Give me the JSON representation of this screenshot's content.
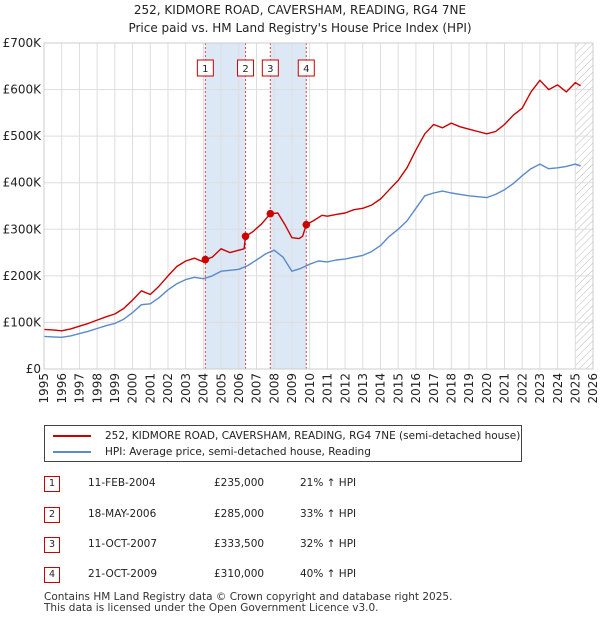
{
  "header": {
    "title": "252, KIDMORE ROAD, CAVERSHAM, READING, RG4 7NE",
    "subtitle": "Price paid vs. HM Land Registry's House Price Index (HPI)"
  },
  "legend": {
    "property_label": "252, KIDMORE ROAD, CAVERSHAM, READING, RG4 7NE (semi-detached house)",
    "hpi_label": "HPI: Average price, semi-detached house, Reading"
  },
  "sales": [
    {
      "num": "1",
      "date": "11-FEB-2004",
      "price": "£235,000",
      "hpi": "21% ↑ HPI"
    },
    {
      "num": "2",
      "date": "18-MAY-2006",
      "price": "£285,000",
      "hpi": "33% ↑ HPI"
    },
    {
      "num": "3",
      "date": "11-OCT-2007",
      "price": "£333,500",
      "hpi": "32% ↑ HPI"
    },
    {
      "num": "4",
      "date": "21-OCT-2009",
      "price": "£310,000",
      "hpi": "40% ↑ HPI"
    }
  ],
  "footer": {
    "line1": "Contains HM Land Registry data © Crown copyright and database right 2025.",
    "line2": "This data is licensed under the Open Government Licence v3.0."
  },
  "colors": {
    "property": "#cc0000",
    "hpi": "#5a8ac8",
    "shade": "#dce8f6",
    "grid": "#dddddd"
  },
  "chart_data": {
    "type": "line",
    "title": "252, KIDMORE ROAD, CAVERSHAM, READING, RG4 7NE",
    "subtitle": "Price paid vs. HM Land Registry's House Price Index (HPI)",
    "xlabel": "",
    "ylabel": "",
    "xlim": [
      1995,
      2026
    ],
    "ylim": [
      0,
      700000
    ],
    "x_ticks": [
      1995,
      1996,
      1997,
      1998,
      1999,
      2000,
      2001,
      2002,
      2003,
      2004,
      2005,
      2006,
      2007,
      2008,
      2009,
      2010,
      2011,
      2012,
      2013,
      2014,
      2015,
      2016,
      2017,
      2018,
      2019,
      2020,
      2021,
      2022,
      2023,
      2024,
      2025,
      2026
    ],
    "y_ticks": [
      0,
      100000,
      200000,
      300000,
      400000,
      500000,
      600000,
      700000
    ],
    "y_tick_labels": [
      "£0",
      "£100K",
      "£200K",
      "£300K",
      "£400K",
      "£500K",
      "£600K",
      "£700K"
    ],
    "grid": true,
    "legend_position": "below",
    "series": [
      {
        "name": "252, KIDMORE ROAD, CAVERSHAM, READING, RG4 7NE (semi-detached house)",
        "color": "#cc0000",
        "points": [
          [
            1995.0,
            85000
          ],
          [
            1995.5,
            84000
          ],
          [
            1996.0,
            82000
          ],
          [
            1996.5,
            86000
          ],
          [
            1997.0,
            92000
          ],
          [
            1997.5,
            98000
          ],
          [
            1998.0,
            105000
          ],
          [
            1998.5,
            112000
          ],
          [
            1999.0,
            118000
          ],
          [
            1999.5,
            130000
          ],
          [
            2000.0,
            148000
          ],
          [
            2000.5,
            168000
          ],
          [
            2001.0,
            160000
          ],
          [
            2001.5,
            178000
          ],
          [
            2002.0,
            200000
          ],
          [
            2002.5,
            220000
          ],
          [
            2003.0,
            232000
          ],
          [
            2003.5,
            238000
          ],
          [
            2004.0,
            230000
          ],
          [
            2004.11,
            235000
          ],
          [
            2004.5,
            240000
          ],
          [
            2005.0,
            258000
          ],
          [
            2005.5,
            250000
          ],
          [
            2006.0,
            255000
          ],
          [
            2006.3,
            258000
          ],
          [
            2006.38,
            285000
          ],
          [
            2006.8,
            295000
          ],
          [
            2007.3,
            312000
          ],
          [
            2007.78,
            333500
          ],
          [
            2008.2,
            335000
          ],
          [
            2008.6,
            310000
          ],
          [
            2009.0,
            282000
          ],
          [
            2009.4,
            280000
          ],
          [
            2009.6,
            285000
          ],
          [
            2009.81,
            310000
          ],
          [
            2010.2,
            318000
          ],
          [
            2010.7,
            330000
          ],
          [
            2011.0,
            328000
          ],
          [
            2011.5,
            332000
          ],
          [
            2012.0,
            335000
          ],
          [
            2012.5,
            342000
          ],
          [
            2013.0,
            345000
          ],
          [
            2013.5,
            352000
          ],
          [
            2014.0,
            365000
          ],
          [
            2014.5,
            385000
          ],
          [
            2015.0,
            405000
          ],
          [
            2015.5,
            432000
          ],
          [
            2016.0,
            470000
          ],
          [
            2016.5,
            505000
          ],
          [
            2017.0,
            525000
          ],
          [
            2017.5,
            518000
          ],
          [
            2018.0,
            528000
          ],
          [
            2018.5,
            520000
          ],
          [
            2019.0,
            515000
          ],
          [
            2019.5,
            510000
          ],
          [
            2020.0,
            505000
          ],
          [
            2020.5,
            510000
          ],
          [
            2021.0,
            525000
          ],
          [
            2021.5,
            545000
          ],
          [
            2022.0,
            560000
          ],
          [
            2022.5,
            595000
          ],
          [
            2023.0,
            620000
          ],
          [
            2023.5,
            600000
          ],
          [
            2024.0,
            610000
          ],
          [
            2024.5,
            595000
          ],
          [
            2025.0,
            615000
          ],
          [
            2025.3,
            608000
          ]
        ]
      },
      {
        "name": "HPI: Average price, semi-detached house, Reading",
        "color": "#5a8ac8",
        "points": [
          [
            1995.0,
            70000
          ],
          [
            1995.5,
            69000
          ],
          [
            1996.0,
            68000
          ],
          [
            1996.5,
            71000
          ],
          [
            1997.0,
            76000
          ],
          [
            1997.5,
            81000
          ],
          [
            1998.0,
            87000
          ],
          [
            1998.5,
            93000
          ],
          [
            1999.0,
            98000
          ],
          [
            1999.5,
            107000
          ],
          [
            2000.0,
            121000
          ],
          [
            2000.5,
            138000
          ],
          [
            2001.0,
            140000
          ],
          [
            2001.5,
            153000
          ],
          [
            2002.0,
            170000
          ],
          [
            2002.5,
            183000
          ],
          [
            2003.0,
            192000
          ],
          [
            2003.5,
            197000
          ],
          [
            2004.0,
            194000
          ],
          [
            2004.5,
            200000
          ],
          [
            2005.0,
            210000
          ],
          [
            2005.5,
            212000
          ],
          [
            2006.0,
            214000
          ],
          [
            2006.5,
            222000
          ],
          [
            2007.0,
            234000
          ],
          [
            2007.5,
            247000
          ],
          [
            2008.0,
            255000
          ],
          [
            2008.5,
            240000
          ],
          [
            2009.0,
            210000
          ],
          [
            2009.5,
            216000
          ],
          [
            2010.0,
            225000
          ],
          [
            2010.5,
            232000
          ],
          [
            2011.0,
            230000
          ],
          [
            2011.5,
            234000
          ],
          [
            2012.0,
            236000
          ],
          [
            2012.5,
            240000
          ],
          [
            2013.0,
            244000
          ],
          [
            2013.5,
            252000
          ],
          [
            2014.0,
            265000
          ],
          [
            2014.5,
            285000
          ],
          [
            2015.0,
            300000
          ],
          [
            2015.5,
            318000
          ],
          [
            2016.0,
            345000
          ],
          [
            2016.5,
            372000
          ],
          [
            2017.0,
            378000
          ],
          [
            2017.5,
            382000
          ],
          [
            2018.0,
            378000
          ],
          [
            2018.5,
            375000
          ],
          [
            2019.0,
            372000
          ],
          [
            2019.5,
            370000
          ],
          [
            2020.0,
            368000
          ],
          [
            2020.5,
            375000
          ],
          [
            2021.0,
            385000
          ],
          [
            2021.5,
            398000
          ],
          [
            2022.0,
            415000
          ],
          [
            2022.5,
            430000
          ],
          [
            2023.0,
            440000
          ],
          [
            2023.5,
            430000
          ],
          [
            2024.0,
            432000
          ],
          [
            2024.5,
            435000
          ],
          [
            2025.0,
            440000
          ],
          [
            2025.3,
            436000
          ]
        ]
      }
    ],
    "sales_markers": [
      {
        "label": "1",
        "x": 2004.11,
        "y": 235000
      },
      {
        "label": "2",
        "x": 2006.38,
        "y": 285000
      },
      {
        "label": "3",
        "x": 2007.78,
        "y": 333500
      },
      {
        "label": "4",
        "x": 2009.81,
        "y": 310000
      }
    ],
    "shaded_ranges": [
      [
        2004.11,
        2006.38
      ],
      [
        2007.78,
        2009.81
      ]
    ],
    "hatched_from": 2025.0
  }
}
